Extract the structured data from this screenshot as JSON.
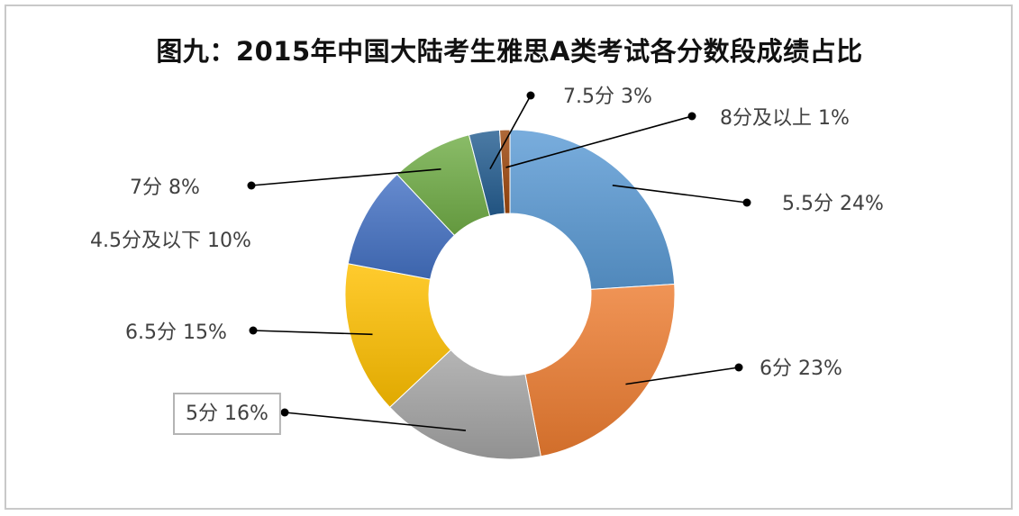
{
  "chart_data": {
    "type": "pie",
    "variant": "donut",
    "title": "图九：2015年中国大陆考生雅思A类考试各分数段成绩占比",
    "legend": "none",
    "slices": [
      {
        "label": "5.5分",
        "value": 24,
        "display": "24%",
        "color": "#5b9bd5"
      },
      {
        "label": "6分",
        "value": 23,
        "display": "23%",
        "color": "#ed7d31"
      },
      {
        "label": "5分",
        "value": 16,
        "display": "16%",
        "color": "#a5a5a5"
      },
      {
        "label": "6.5分",
        "value": 15,
        "display": "15%",
        "color": "#ffc000"
      },
      {
        "label": "4.5分及以下",
        "value": 10,
        "display": "10%",
        "color": "#4472c4"
      },
      {
        "label": "7分",
        "value": 8,
        "display": "8%",
        "color": "#70ad47"
      },
      {
        "label": "7.5分",
        "value": 3,
        "display": "3%",
        "color": "#255e91"
      },
      {
        "label": "8分及以上",
        "value": 1,
        "display": "1%",
        "color": "#9e480e"
      }
    ]
  }
}
